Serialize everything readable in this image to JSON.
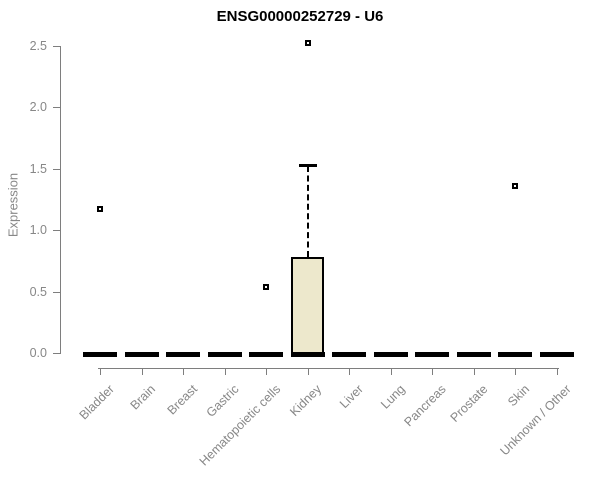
{
  "chart_data": {
    "type": "boxplot",
    "title": "ENSG00000252729 - U6",
    "ylabel": "Expression",
    "xlabel": "",
    "ylim": [
      -0.12,
      2.62
    ],
    "yticks": [
      0.0,
      0.5,
      1.0,
      1.5,
      2.0,
      2.5
    ],
    "grid": false,
    "legend": null,
    "categories": [
      "Bladder",
      "Brain",
      "Breast",
      "Gastric",
      "Hematopoietic cells",
      "Kidney",
      "Liver",
      "Lung",
      "Pancreas",
      "Prostate",
      "Skin",
      "Unknown / Other"
    ],
    "series": [
      {
        "category": "Bladder",
        "median": 0.0,
        "q1": 0.0,
        "q3": 0.0,
        "whisker_low": 0.0,
        "whisker_high": 0.0,
        "outliers": [
          1.17
        ]
      },
      {
        "category": "Brain",
        "median": 0.0,
        "q1": 0.0,
        "q3": 0.0,
        "whisker_low": 0.0,
        "whisker_high": 0.0,
        "outliers": []
      },
      {
        "category": "Breast",
        "median": 0.0,
        "q1": 0.0,
        "q3": 0.0,
        "whisker_low": 0.0,
        "whisker_high": 0.0,
        "outliers": []
      },
      {
        "category": "Gastric",
        "median": 0.0,
        "q1": 0.0,
        "q3": 0.0,
        "whisker_low": 0.0,
        "whisker_high": 0.0,
        "outliers": []
      },
      {
        "category": "Hematopoietic cells",
        "median": 0.0,
        "q1": 0.0,
        "q3": 0.0,
        "whisker_low": 0.0,
        "whisker_high": 0.0,
        "outliers": [
          0.54
        ]
      },
      {
        "category": "Kidney",
        "median": 0.0,
        "q1": 0.0,
        "q3": 0.78,
        "whisker_low": 0.0,
        "whisker_high": 1.53,
        "outliers": [
          2.52
        ]
      },
      {
        "category": "Liver",
        "median": 0.0,
        "q1": 0.0,
        "q3": 0.0,
        "whisker_low": 0.0,
        "whisker_high": 0.0,
        "outliers": []
      },
      {
        "category": "Lung",
        "median": 0.0,
        "q1": 0.0,
        "q3": 0.0,
        "whisker_low": 0.0,
        "whisker_high": 0.0,
        "outliers": []
      },
      {
        "category": "Pancreas",
        "median": 0.0,
        "q1": 0.0,
        "q3": 0.0,
        "whisker_low": 0.0,
        "whisker_high": 0.0,
        "outliers": []
      },
      {
        "category": "Prostate",
        "median": 0.0,
        "q1": 0.0,
        "q3": 0.0,
        "whisker_low": 0.0,
        "whisker_high": 0.0,
        "outliers": []
      },
      {
        "category": "Skin",
        "median": 0.0,
        "q1": 0.0,
        "q3": 0.0,
        "whisker_low": 0.0,
        "whisker_high": 0.0,
        "outliers": [
          1.36
        ]
      },
      {
        "category": "Unknown / Other",
        "median": 0.0,
        "q1": 0.0,
        "q3": 0.0,
        "whisker_low": 0.0,
        "whisker_high": 0.0,
        "outliers": []
      }
    ],
    "colors": {
      "box_fill": "#EDE8CC",
      "box_border": "#000000",
      "whisker": "#000000",
      "outlier_fill": "#FFFFFF",
      "axis": "#7E7E7E",
      "tick_text": "#878787",
      "title_text": "#000000",
      "background": "#FFFFFF"
    }
  }
}
